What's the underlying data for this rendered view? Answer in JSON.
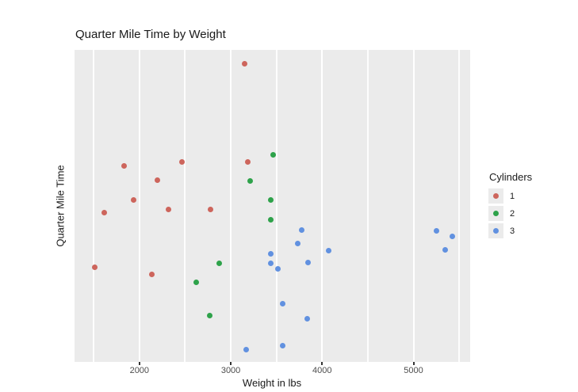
{
  "chart_data": {
    "type": "scatter",
    "title": "Quarter Mile Time by Weight",
    "xlabel": "Weight in lbs",
    "ylabel": "Quarter Mile Time",
    "x_axis": {
      "tick_labels": [
        "2000",
        "3000",
        "4000",
        "5000"
      ],
      "major_gridlines": [
        2000,
        3000,
        4000,
        5000
      ],
      "minor_gridlines": [
        1500,
        2500,
        3500,
        4500,
        5500
      ],
      "range": [
        1290,
        5620
      ]
    },
    "y_axis": {
      "tick_labels": [],
      "range": [
        14.13,
        23.3
      ]
    },
    "grid": "vertical-only",
    "legend": {
      "title": "Cylinders",
      "position": "right"
    },
    "colors": {
      "panel_bg": "#EBEBEB",
      "gridline": "#FFFFFF",
      "title_text": "#1A1A1A",
      "tick_label_text": "#4D4D4D",
      "series_1": "#CD655C",
      "series_2": "#2EA24A",
      "series_3": "#6191E0"
    },
    "series": [
      {
        "name": "1",
        "color": "#CD655C",
        "points": [
          [
            2320,
            18.61
          ],
          [
            3190,
            20.0
          ],
          [
            3150,
            22.9
          ],
          [
            2200,
            19.47
          ],
          [
            1615,
            18.52
          ],
          [
            1835,
            19.9
          ],
          [
            2465,
            20.01
          ],
          [
            1935,
            18.9
          ],
          [
            2140,
            16.7
          ],
          [
            1513,
            16.9
          ],
          [
            2780,
            18.6
          ]
        ]
      },
      {
        "name": "2",
        "color": "#2EA24A",
        "points": [
          [
            2620,
            16.46
          ],
          [
            2875,
            17.02
          ],
          [
            3215,
            19.44
          ],
          [
            3460,
            20.22
          ],
          [
            3440,
            18.3
          ],
          [
            3440,
            18.9
          ],
          [
            2770,
            15.5
          ]
        ]
      },
      {
        "name": "3",
        "color": "#6191E0",
        "points": [
          [
            3440,
            17.02
          ],
          [
            3570,
            15.84
          ],
          [
            4070,
            17.4
          ],
          [
            3730,
            17.6
          ],
          [
            3780,
            18.0
          ],
          [
            5250,
            17.98
          ],
          [
            5424,
            17.82
          ],
          [
            5345,
            17.42
          ],
          [
            3520,
            16.87
          ],
          [
            3435,
            17.3
          ],
          [
            3840,
            15.41
          ],
          [
            3845,
            17.05
          ],
          [
            3170,
            14.5
          ],
          [
            3570,
            14.6
          ]
        ]
      }
    ]
  }
}
